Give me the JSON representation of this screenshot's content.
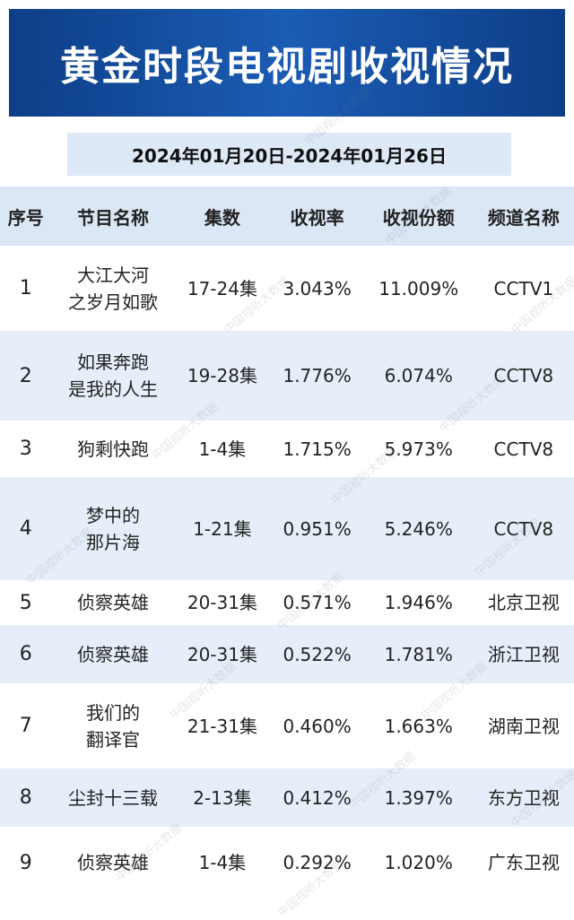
{
  "header": {
    "title": "黄金时段电视剧收视情况",
    "date_range": "2024年01月20日-2024年01月26日"
  },
  "watermark": "中国视听大数据",
  "table": {
    "columns": [
      "序号",
      "节目名称",
      "集数",
      "收视率",
      "收视份额",
      "频道名称"
    ],
    "rows": [
      [
        "1",
        [
          "大江大河",
          "之岁月如歌"
        ],
        "17-24集",
        "3.043%",
        "11.009%",
        "CCTV1"
      ],
      [
        "2",
        [
          "如果奔跑",
          "是我的人生"
        ],
        "19-28集",
        "1.776%",
        "6.074%",
        "CCTV8"
      ],
      [
        "3",
        [
          "狗剩快跑"
        ],
        "1-4集",
        "1.715%",
        "5.973%",
        "CCTV8"
      ],
      [
        "4",
        [
          "梦中的",
          "那片海"
        ],
        "1-21集",
        "0.951%",
        "5.246%",
        "CCTV8"
      ],
      [
        "5",
        [
          "侦察英雄"
        ],
        "20-31集",
        "0.571%",
        "1.946%",
        "北京卫视"
      ],
      [
        "6",
        [
          "侦察英雄"
        ],
        "20-31集",
        "0.522%",
        "1.781%",
        "浙江卫视"
      ],
      [
        "7",
        [
          "我们的",
          "翻译官"
        ],
        "21-31集",
        "0.460%",
        "1.663%",
        "湖南卫视"
      ],
      [
        "8",
        [
          "尘封十三载"
        ],
        "2-13集",
        "0.412%",
        "1.397%",
        "东方卫视"
      ],
      [
        "9",
        [
          "侦察英雄"
        ],
        "1-4集",
        "0.292%",
        "1.020%",
        "广东卫视"
      ]
    ]
  }
}
